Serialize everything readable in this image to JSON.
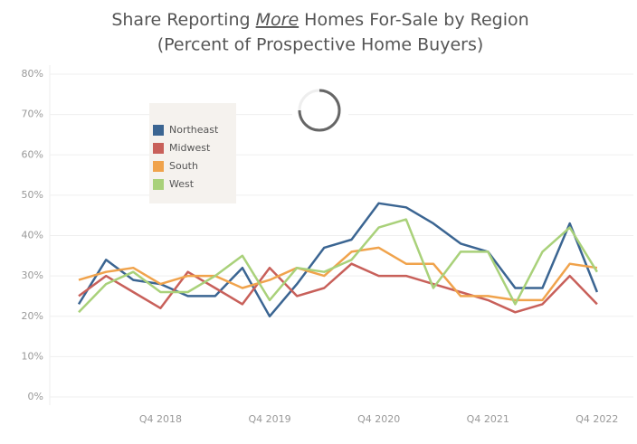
{
  "chart_data": {
    "type": "line",
    "title": [
      "Share Reporting ",
      "More",
      " Homes For-Sale by Region"
    ],
    "subtitle": "(Percent of Prospective Home Buyers)",
    "categories": [
      null,
      null,
      null,
      "Q4 2018",
      null,
      null,
      null,
      "Q4 2019",
      null,
      null,
      null,
      "Q4 2020",
      null,
      null,
      null,
      "Q4 2021",
      null,
      null,
      null,
      "Q4 2022"
    ],
    "series": [
      {
        "name": "Northeast",
        "color": "#3b6592",
        "values": [
          23,
          34,
          29,
          28,
          25,
          25,
          32,
          20,
          28,
          37,
          39,
          48,
          47,
          43,
          38,
          36,
          27,
          27,
          43,
          26
        ]
      },
      {
        "name": "Midwest",
        "color": "#c8605a",
        "values": [
          25,
          30,
          26,
          22,
          31,
          27,
          23,
          32,
          25,
          27,
          33,
          30,
          30,
          28,
          26,
          24,
          21,
          23,
          30,
          23
        ]
      },
      {
        "name": "South",
        "color": "#f0a34c",
        "values": [
          29,
          31,
          32,
          28,
          30,
          30,
          27,
          29,
          32,
          30,
          36,
          37,
          33,
          33,
          25,
          25,
          24,
          24,
          33,
          32
        ]
      },
      {
        "name": "West",
        "color": "#a9d17a",
        "values": [
          21,
          28,
          31,
          26,
          26,
          30,
          35,
          24,
          32,
          31,
          34,
          42,
          44,
          27,
          36,
          36,
          23,
          36,
          42,
          31
        ]
      }
    ],
    "ylim": [
      0,
      80
    ],
    "yticks": [
      {
        "value": 0,
        "label": "0%"
      },
      {
        "value": 10,
        "label": "10%"
      },
      {
        "value": 20,
        "label": "20%"
      },
      {
        "value": 30,
        "label": "30%"
      },
      {
        "value": 40,
        "label": "40%"
      },
      {
        "value": 50,
        "label": "50%"
      },
      {
        "value": 60,
        "label": "60%"
      },
      {
        "value": 70,
        "label": "70%"
      },
      {
        "value": 80,
        "label": "80%"
      }
    ],
    "grid": true,
    "legend": "top-left"
  }
}
